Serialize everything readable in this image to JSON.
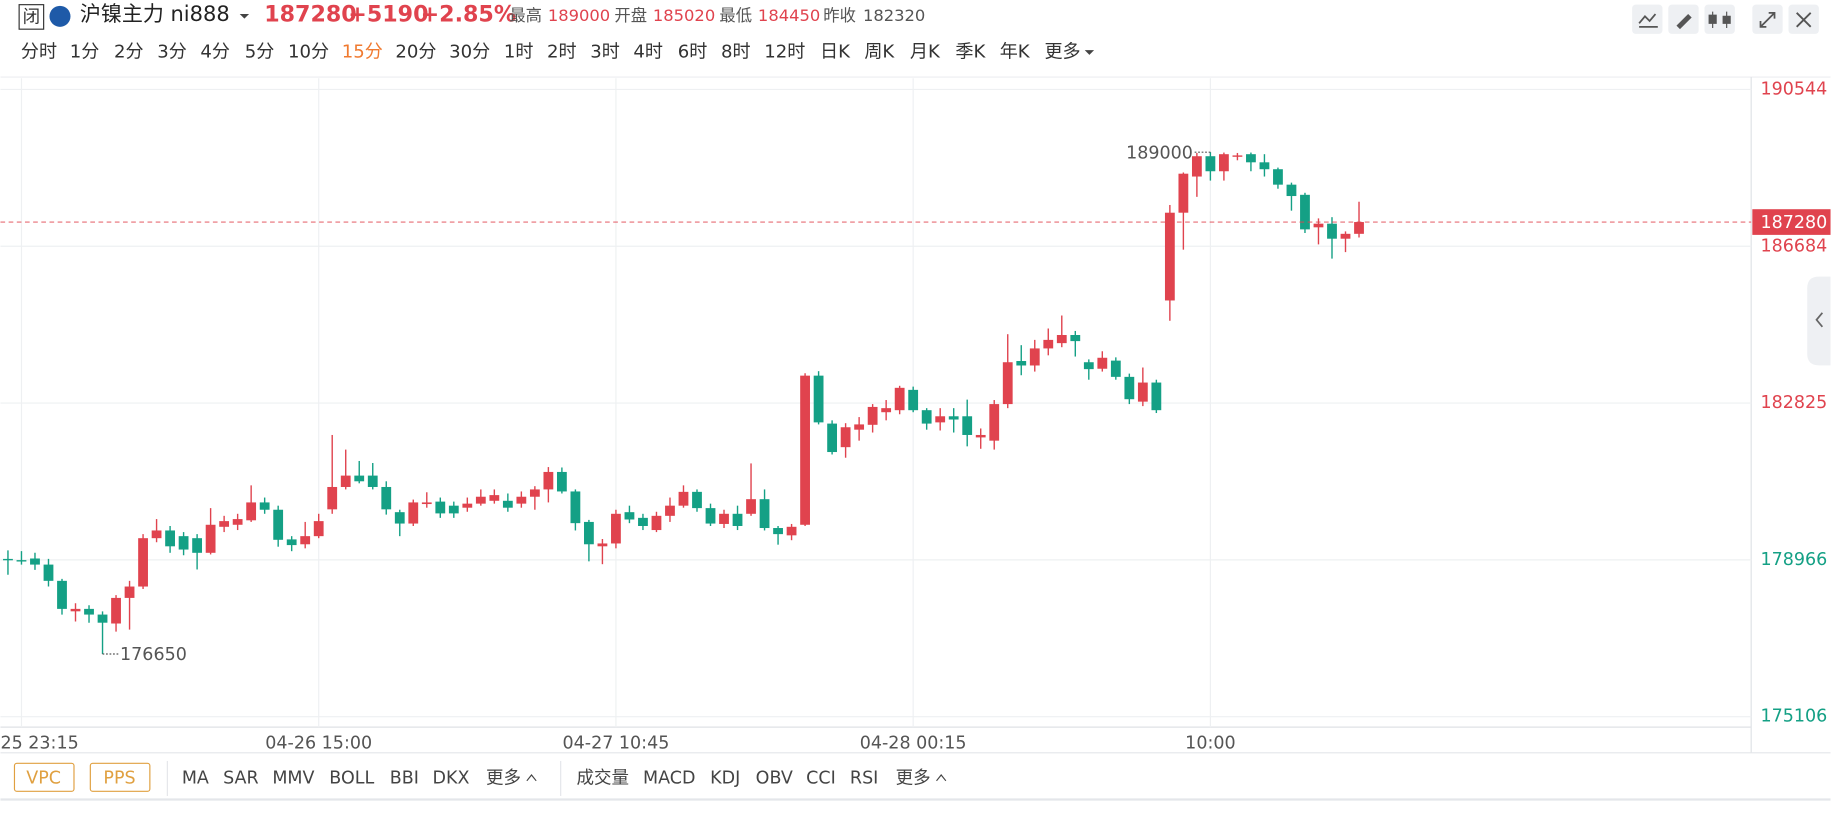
{
  "header": {
    "status_icon": "闭",
    "symbol": "沪镍主力 ni888",
    "price": 187280,
    "change": "+5190",
    "change_pct": "+2.85%",
    "stats": [
      {
        "label": "最高",
        "value": 189000
      },
      {
        "label": "开盘",
        "value": 185020
      },
      {
        "label": "最低",
        "value": 184450
      },
      {
        "label": "昨收",
        "value": 182320
      }
    ],
    "prev_close": 182320
  },
  "periods": [
    "分时",
    "1分",
    "2分",
    "3分",
    "4分",
    "5分",
    "10分",
    "15分",
    "20分",
    "30分",
    "1时",
    "2时",
    "3时",
    "4时",
    "6时",
    "8时",
    "12时",
    "日K",
    "周K",
    "月K",
    "季K",
    "年K",
    "更多"
  ],
  "overlay_buttons": [
    "VPC",
    "PPS"
  ],
  "main_indicators": [
    "MA",
    "SAR",
    "MMV",
    "BOLL",
    "BBI",
    "DKX",
    "更多"
  ],
  "sub_indicators": [
    "成交量",
    "MACD",
    "KDJ",
    "OBV",
    "CCI",
    "RSI",
    "更多"
  ],
  "chart_data": {
    "type": "candlestick",
    "up_color": "#e0434e",
    "down_color": "#14a085",
    "grid": true,
    "categories": [
      null,
      "25 23:15",
      null,
      null,
      null,
      null,
      null,
      null,
      null,
      null,
      null,
      null,
      null,
      null,
      null,
      null,
      null,
      null,
      null,
      null,
      null,
      null,
      null,
      "04-26 15:00",
      null,
      null,
      null,
      null,
      null,
      null,
      null,
      null,
      null,
      null,
      null,
      null,
      null,
      null,
      null,
      null,
      null,
      null,
      null,
      null,
      null,
      "04-27 10:45",
      null,
      null,
      null,
      null,
      null,
      null,
      null,
      null,
      null,
      null,
      null,
      null,
      null,
      null,
      null,
      null,
      null,
      null,
      null,
      null,
      null,
      "04-28 00:15",
      null,
      null,
      null,
      null,
      null,
      null,
      null,
      null,
      null,
      null,
      null,
      null,
      null,
      null,
      null,
      null,
      null,
      null,
      null,
      null,
      null,
      "10:00",
      null,
      null,
      null,
      null,
      null,
      null,
      null,
      null,
      null,
      null,
      null
    ],
    "open": [
      178990,
      178960,
      179000,
      178850,
      178450,
      177700,
      177760,
      177620,
      177400,
      178030,
      178310,
      179500,
      179690,
      179550,
      179500,
      179140,
      179780,
      179830,
      179940,
      180380,
      180200,
      179470,
      179350,
      179550,
      180210,
      180760,
      181040,
      181040,
      180760,
      180140,
      179860,
      180340,
      180400,
      180300,
      180250,
      180350,
      180420,
      180420,
      180350,
      180520,
      180700,
      181130,
      180650,
      179900,
      179300,
      179370,
      180140,
      180000,
      179700,
      180050,
      180300,
      180640,
      180240,
      179850,
      180100,
      180100,
      180460,
      179750,
      179570,
      179830,
      183500,
      182320,
      181740,
      182170,
      182290,
      182600,
      182650,
      183150,
      182650,
      182350,
      182500,
      182500,
      181980,
      181900,
      182800,
      183860,
      183750,
      184170,
      184300,
      184500,
      183830,
      183670,
      183870,
      183470,
      182860,
      183330,
      185350,
      187510,
      188400,
      188900,
      188530,
      188900,
      188950,
      188750,
      188580,
      188200,
      187950,
      187150,
      187240,
      186870,
      186990
    ],
    "high": [
      179200,
      179180,
      179140,
      178990,
      178500,
      177900,
      177850,
      177700,
      178100,
      178450,
      179600,
      179970,
      179800,
      179650,
      179600,
      180240,
      180050,
      180100,
      180800,
      180500,
      180300,
      179550,
      179900,
      180100,
      182040,
      181680,
      181400,
      181350,
      180900,
      180200,
      180450,
      180630,
      180500,
      180400,
      180500,
      180700,
      180700,
      180600,
      180650,
      180780,
      181250,
      181240,
      180700,
      179950,
      179480,
      180200,
      180300,
      180100,
      180150,
      180500,
      180800,
      180700,
      180350,
      180200,
      180300,
      181340,
      180700,
      179800,
      179850,
      183560,
      183610,
      182400,
      182330,
      182480,
      182800,
      182900,
      183250,
      183230,
      182700,
      182700,
      182700,
      182910,
      182200,
      182900,
      184520,
      184250,
      184380,
      184660,
      184980,
      184600,
      183900,
      184100,
      183950,
      183550,
      183700,
      183400,
      187700,
      188500,
      188980,
      189000,
      188990,
      188980,
      188990,
      188950,
      188620,
      188250,
      188000,
      187370,
      187400,
      187050,
      187780
    ],
    "low": [
      178600,
      178850,
      178720,
      178310,
      177620,
      177450,
      177420,
      176650,
      177200,
      177250,
      178250,
      179400,
      179140,
      179080,
      178730,
      179100,
      179650,
      179700,
      179900,
      180100,
      179290,
      179180,
      179250,
      179500,
      180100,
      180700,
      180850,
      180700,
      180080,
      179550,
      179800,
      180250,
      180000,
      180000,
      180150,
      180300,
      180350,
      180150,
      180250,
      180200,
      180380,
      180600,
      179690,
      178930,
      178860,
      179250,
      179870,
      179700,
      179650,
      179900,
      180250,
      180150,
      179800,
      179750,
      179700,
      180050,
      179690,
      179340,
      179450,
      179800,
      182300,
      181560,
      181480,
      181900,
      182100,
      182400,
      182550,
      182600,
      182170,
      182150,
      182100,
      181760,
      181700,
      181680,
      182700,
      183510,
      183600,
      184000,
      184200,
      183970,
      183400,
      183600,
      183400,
      182800,
      182750,
      182580,
      184850,
      186600,
      187900,
      188300,
      188300,
      188800,
      188530,
      188400,
      188100,
      187560,
      187010,
      186730,
      186380,
      186540,
      186900
    ],
    "close": [
      178970,
      178940,
      178850,
      178450,
      177760,
      177760,
      177620,
      177420,
      178030,
      178310,
      179500,
      179690,
      179300,
      179220,
      179140,
      179830,
      179920,
      179970,
      180380,
      180200,
      179460,
      179330,
      179550,
      179920,
      180760,
      181040,
      180900,
      180760,
      180210,
      179860,
      180380,
      180380,
      180110,
      180110,
      180350,
      180520,
      180560,
      180250,
      180520,
      180700,
      181130,
      180650,
      179870,
      179350,
      179370,
      180100,
      179960,
      179800,
      180050,
      180300,
      180640,
      180240,
      179860,
      180100,
      179800,
      180460,
      179750,
      179600,
      179780,
      183500,
      182350,
      181620,
      182230,
      182300,
      182730,
      182700,
      183200,
      182650,
      182320,
      182500,
      182420,
      182040,
      182040,
      182800,
      183830,
      183750,
      184170,
      184380,
      184500,
      184350,
      183660,
      183940,
      183470,
      182920,
      183330,
      182650,
      187510,
      188470,
      188900,
      188530,
      188950,
      188920,
      188750,
      188580,
      188200,
      187920,
      187100,
      187240,
      186870,
      186990,
      187280
    ],
    "ylim": [
      174850,
      190820
    ],
    "yticks": [
      175106,
      178966,
      182825,
      186684,
      190544
    ]
  }
}
